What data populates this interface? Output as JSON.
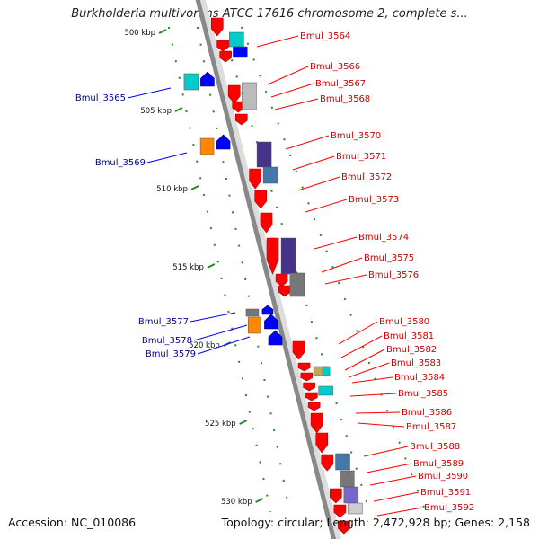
{
  "title": "Burkholderia multivorans ATCC 17616 chromosome 2, complete s...",
  "accession": "Accession: NC_010086",
  "topology": "Topology: circular; Length: 2,472,928 bp; Genes: 2,158",
  "colors": {
    "backbone": "#888888",
    "forward_gene": "#ff0000",
    "reverse_gene": "#0000ff",
    "forward_label": "#cc0000",
    "reverse_label": "#000099",
    "tick": "#228b22",
    "cog_cyan": "#00cccc",
    "cog_purple": "#443388",
    "cog_steel": "#4477aa",
    "cog_orange": "#ff8800",
    "cog_gray": "#777777",
    "cog_light": "#cccccc"
  },
  "scale_labels": [
    "500 kbp",
    "505 kbp",
    "510 kbp",
    "515 kbp",
    "520 kbp",
    "525 kbp",
    "530 kbp"
  ],
  "reverse_labels": [
    "Bmul_3565",
    "Bmul_3569",
    "Bmul_3577",
    "Bmul_3578",
    "Bmul_3579"
  ],
  "forward_labels": [
    "Bmul_3564",
    "Bmul_3566",
    "Bmul_3567",
    "Bmul_3568",
    "Bmul_3570",
    "Bmul_3571",
    "Bmul_3572",
    "Bmul_3573",
    "Bmul_3574",
    "Bmul_3575",
    "Bmul_3576",
    "Bmul_3580",
    "Bmul_3581",
    "Bmul_3582",
    "Bmul_3583",
    "Bmul_3584",
    "Bmul_3585",
    "Bmul_3586",
    "Bmul_3587",
    "Bmul_3588",
    "Bmul_3589",
    "Bmul_3590",
    "Bmul_3591",
    "Bmul_3592"
  ]
}
